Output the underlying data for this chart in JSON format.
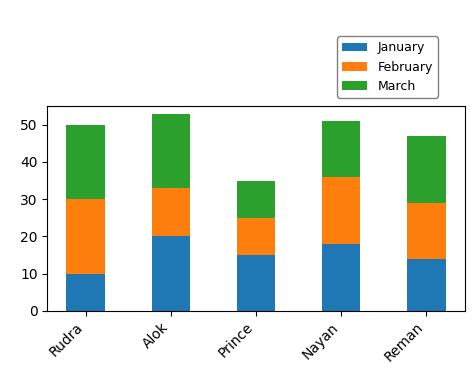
{
  "categories": [
    "Rudra",
    "Alok",
    "Prince",
    "Nayan",
    "Reman"
  ],
  "january": [
    10,
    20,
    15,
    18,
    14
  ],
  "february": [
    20,
    13,
    10,
    18,
    15
  ],
  "march": [
    20,
    20,
    10,
    15,
    18
  ],
  "colors": {
    "January": "#1f77b4",
    "February": "#ff7f0e",
    "March": "#2ca02c"
  },
  "legend_labels": [
    "January",
    "February",
    "March"
  ],
  "ylim": [
    0,
    55
  ],
  "yticks": [
    0,
    10,
    20,
    30,
    40,
    50
  ],
  "bar_width": 0.45,
  "figsize": [
    4.74,
    3.79
  ],
  "dpi": 100
}
